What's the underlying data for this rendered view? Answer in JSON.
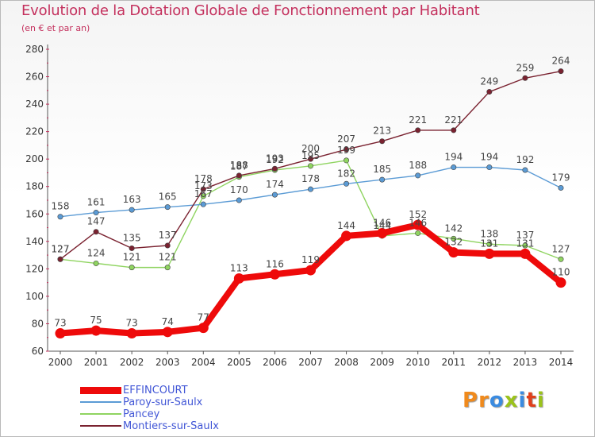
{
  "header": {
    "title": "Evolution de la Dotation Globale de Fonctionnement par Habitant",
    "subtitle": "(en € et par an)"
  },
  "brand": {
    "letters": [
      "P",
      "r",
      "o",
      "x",
      "i",
      "t",
      "i"
    ],
    "colors": [
      "#f08a1c",
      "#f08a1c",
      "#3b8be0",
      "#9bc31b",
      "#3b8be0",
      "#e0401b",
      "#9bc31b"
    ]
  },
  "chart_data": {
    "type": "line",
    "title": "Evolution de la Dotation Globale de Fonctionnement par Habitant",
    "subtitle": "(en € et par an)",
    "x": [
      "2000",
      "2001",
      "2002",
      "2003",
      "2004",
      "2005",
      "2006",
      "2007",
      "2008",
      "2009",
      "2010",
      "2011",
      "2012",
      "2013",
      "2014"
    ],
    "ylim": [
      60,
      280
    ],
    "yticks": [
      60,
      80,
      100,
      120,
      140,
      160,
      180,
      200,
      220,
      240,
      260,
      280
    ],
    "grid": false,
    "legend_position": "bottom-left",
    "series": [
      {
        "name": "EFFINCOURT",
        "color": "#ee0a0a",
        "values": [
          73,
          75,
          73,
          74,
          77,
          113,
          116,
          119,
          144,
          146,
          152,
          132,
          131,
          131,
          110
        ]
      },
      {
        "name": "Paroy-sur-Saulx",
        "color": "#5b9bd5",
        "values": [
          158,
          161,
          163,
          165,
          167,
          170,
          174,
          178,
          182,
          185,
          188,
          194,
          194,
          192,
          179
        ]
      },
      {
        "name": "Pancey",
        "color": "#8fd460",
        "values": [
          127,
          124,
          121,
          121,
          173,
          187,
          192,
          195,
          199,
          144,
          146,
          142,
          138,
          137,
          127
        ]
      },
      {
        "name": "Montiers-sur-Saulx",
        "color": "#7a2230",
        "values": [
          127,
          147,
          135,
          137,
          178,
          188,
          193,
          200,
          207,
          213,
          221,
          221,
          249,
          259,
          264
        ]
      }
    ]
  }
}
